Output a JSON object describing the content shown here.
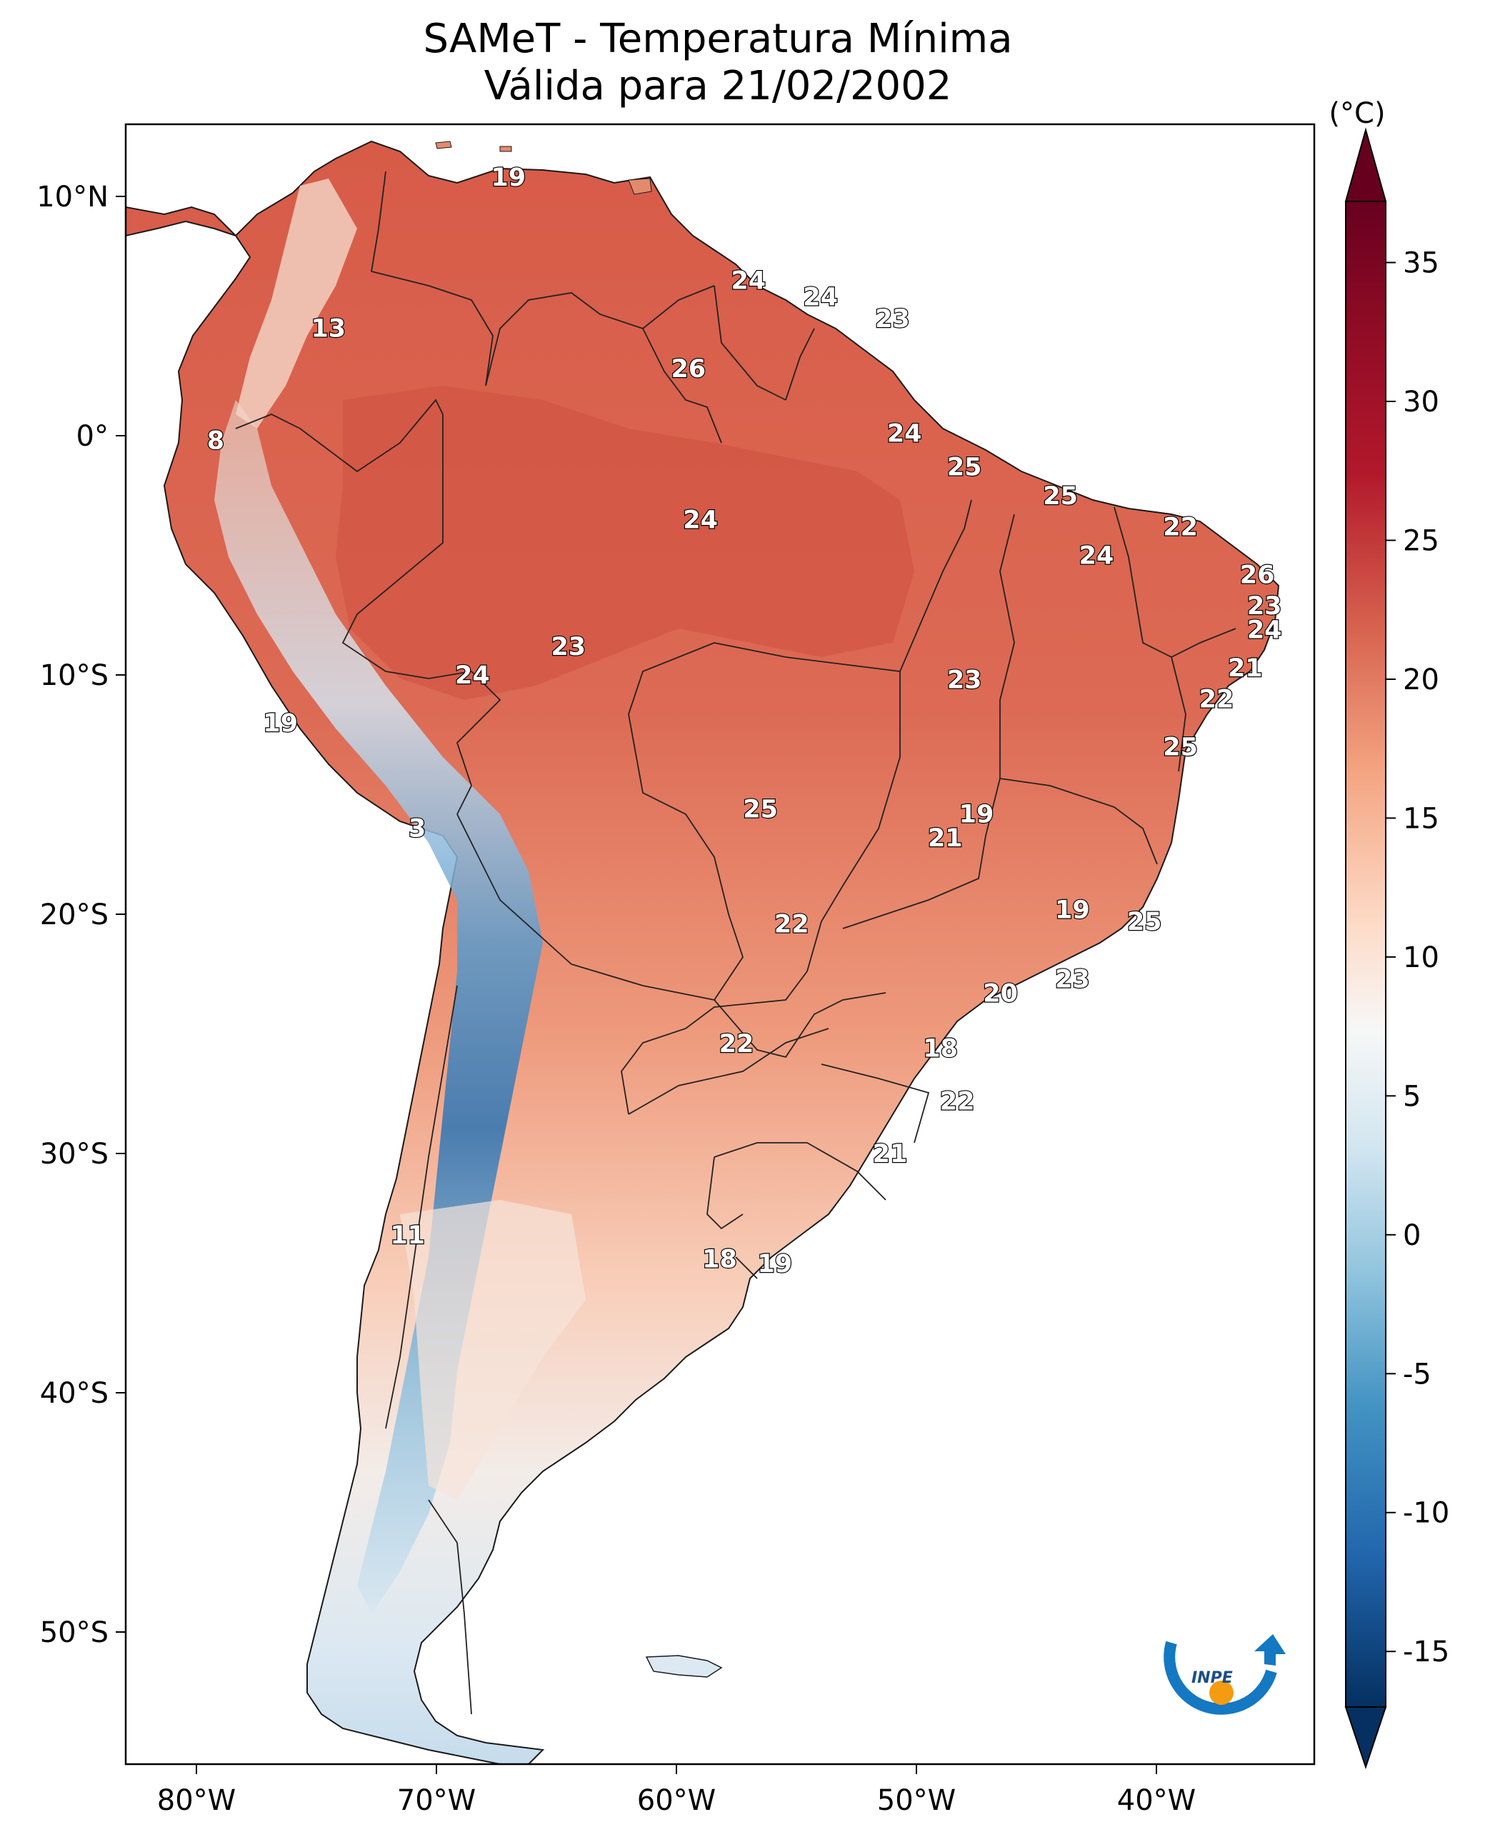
{
  "title": {
    "line1": "SAMeT - Temperatura Mínima",
    "line2": "Válida para 21/02/2002"
  },
  "map": {
    "lon_ticks": [
      "80°W",
      "70°W",
      "60°W",
      "50°W",
      "40°W"
    ],
    "lat_ticks": [
      "10°N",
      "0°",
      "10°S",
      "20°S",
      "30°S",
      "40°S",
      "50°S"
    ],
    "colors": {
      "warm_dark": "#c43b37",
      "warm": "#dd6b53",
      "warm_light": "#f2a98a",
      "pale": "#f8d9c9",
      "neutral": "#f4f4f4",
      "cool_light": "#c9dfee",
      "cool": "#6aa6d1",
      "cool_dark": "#2a6fb1"
    },
    "values": [
      {
        "label": "19",
        "lon": -67,
        "lat": 10.8
      },
      {
        "label": "13",
        "lon": -74.5,
        "lat": 4.5
      },
      {
        "label": "8",
        "lon": -79.2,
        "lat": -0.2
      },
      {
        "label": "24",
        "lon": -57,
        "lat": 6.5
      },
      {
        "label": "24",
        "lon": -54,
        "lat": 5.8
      },
      {
        "label": "23",
        "lon": -51,
        "lat": 4.9
      },
      {
        "label": "26",
        "lon": -59.5,
        "lat": 2.8
      },
      {
        "label": "24",
        "lon": -50.5,
        "lat": 0.1
      },
      {
        "label": "25",
        "lon": -48,
        "lat": -1.3
      },
      {
        "label": "25",
        "lon": -44,
        "lat": -2.5
      },
      {
        "label": "24",
        "lon": -59,
        "lat": -3.5
      },
      {
        "label": "22",
        "lon": -39,
        "lat": -3.8
      },
      {
        "label": "24",
        "lon": -42.5,
        "lat": -5.0
      },
      {
        "label": "26",
        "lon": -35.8,
        "lat": -5.8
      },
      {
        "label": "23",
        "lon": -35.5,
        "lat": -7.1
      },
      {
        "label": "24",
        "lon": -35.5,
        "lat": -8.1
      },
      {
        "label": "21",
        "lon": -36.3,
        "lat": -9.7
      },
      {
        "label": "22",
        "lon": -37.5,
        "lat": -11.0
      },
      {
        "label": "23",
        "lon": -64.5,
        "lat": -8.8
      },
      {
        "label": "24",
        "lon": -68.5,
        "lat": -10.0
      },
      {
        "label": "23",
        "lon": -48,
        "lat": -10.2
      },
      {
        "label": "19",
        "lon": -76.5,
        "lat": -12.0
      },
      {
        "label": "25",
        "lon": -39,
        "lat": -13.0
      },
      {
        "label": "3",
        "lon": -70.8,
        "lat": -16.4
      },
      {
        "label": "25",
        "lon": -56.5,
        "lat": -15.6
      },
      {
        "label": "19",
        "lon": -47.5,
        "lat": -15.8
      },
      {
        "label": "21",
        "lon": -48.8,
        "lat": -16.8
      },
      {
        "label": "19",
        "lon": -43.5,
        "lat": -19.8
      },
      {
        "label": "25",
        "lon": -40.5,
        "lat": -20.3
      },
      {
        "label": "22",
        "lon": -55.2,
        "lat": -20.4
      },
      {
        "label": "23",
        "lon": -43.5,
        "lat": -22.7
      },
      {
        "label": "20",
        "lon": -46.5,
        "lat": -23.3
      },
      {
        "label": "22",
        "lon": -57.5,
        "lat": -25.4
      },
      {
        "label": "18",
        "lon": -49,
        "lat": -25.6
      },
      {
        "label": "22",
        "lon": -48.3,
        "lat": -27.8
      },
      {
        "label": "21",
        "lon": -51.1,
        "lat": -30.0
      },
      {
        "label": "11",
        "lon": -71.2,
        "lat": -33.4
      },
      {
        "label": "18",
        "lon": -58.2,
        "lat": -34.4
      },
      {
        "label": "19",
        "lon": -55.9,
        "lat": -34.6
      }
    ]
  },
  "colorbar": {
    "unit": "(°C)",
    "ticks": [
      "35",
      "30",
      "25",
      "20",
      "15",
      "10",
      "5",
      "0",
      "-5",
      "-10",
      "-15"
    ],
    "stops": [
      "#67001f",
      "#b2182b",
      "#d6604d",
      "#f4a582",
      "#fddbc7",
      "#f7f7f7",
      "#d1e5f0",
      "#92c5de",
      "#4393c3",
      "#2166ac",
      "#053061"
    ]
  },
  "logo": {
    "text": "INPE"
  }
}
